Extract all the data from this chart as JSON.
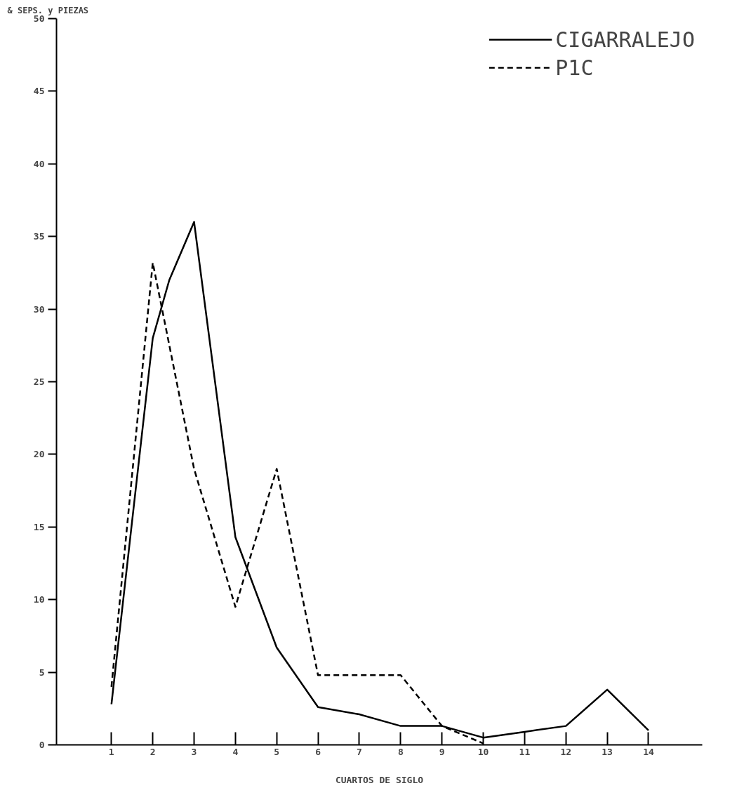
{
  "chart_data": {
    "type": "line",
    "ylabel": "& SEPS. y PIEZAS",
    "xlabel": "CUARTOS DE SIGLO",
    "xlim": [
      -0.33,
      15.3
    ],
    "xticks": [
      1,
      2,
      3,
      4,
      5,
      6,
      7,
      8,
      9,
      10,
      11,
      12,
      13,
      14
    ],
    "ylim": [
      0,
      50
    ],
    "yticks": [
      0,
      5,
      10,
      15,
      20,
      25,
      30,
      35,
      40,
      45,
      50
    ],
    "grid": false,
    "legend": "top right",
    "series": [
      {
        "name": "CIGARRALEJO",
        "color": "#000000",
        "line_style": "solid",
        "x": [
          1,
          2,
          2.4,
          3,
          4,
          5,
          6,
          7,
          8,
          9,
          10,
          11,
          12,
          13,
          14
        ],
        "values": [
          2.8,
          28,
          32,
          36,
          14.3,
          6.7,
          2.6,
          2.1,
          1.3,
          1.3,
          0.5,
          0.9,
          1.3,
          3.8,
          1
        ]
      },
      {
        "name": "P1C",
        "color": "#000000",
        "line_style": "dashed",
        "x": [
          1,
          2,
          3,
          4,
          5,
          6,
          7,
          8,
          9,
          10
        ],
        "values": [
          4,
          33.2,
          19,
          9.5,
          19,
          4.8,
          4.8,
          4.8,
          1.3,
          0.1
        ]
      }
    ]
  }
}
